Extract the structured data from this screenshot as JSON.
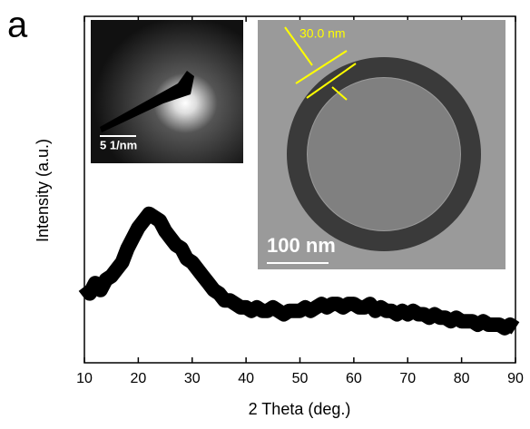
{
  "panel_label": "a",
  "chart_data": {
    "type": "line",
    "xlabel": "2 Theta (deg.)",
    "ylabel": "Intensity (a.u.)",
    "xlim": [
      10,
      90
    ],
    "xticks": [
      10,
      20,
      30,
      40,
      50,
      60,
      70,
      80,
      90
    ],
    "ylim": [
      0,
      100
    ],
    "x": [
      10,
      11,
      12,
      13,
      14,
      15,
      16,
      17,
      18,
      19,
      20,
      21,
      22,
      23,
      24,
      25,
      26,
      27,
      28,
      29,
      30,
      31,
      32,
      33,
      34,
      35,
      36,
      37,
      38,
      39,
      40,
      41,
      42,
      43,
      44,
      45,
      46,
      47,
      48,
      49,
      50,
      51,
      52,
      53,
      54,
      55,
      56,
      57,
      58,
      59,
      60,
      61,
      62,
      63,
      64,
      65,
      66,
      67,
      68,
      69,
      70,
      71,
      72,
      73,
      74,
      75,
      76,
      77,
      78,
      79,
      80,
      81,
      82,
      83,
      84,
      85,
      86,
      87,
      88,
      89,
      90
    ],
    "values": [
      22,
      20,
      23,
      21,
      24,
      25,
      27,
      29,
      33,
      36,
      39,
      41,
      43,
      42,
      41,
      38,
      36,
      34,
      33,
      30,
      29,
      27,
      25,
      23,
      21,
      20,
      18,
      18,
      17,
      16,
      16,
      15,
      16,
      15,
      15,
      16,
      15,
      14,
      15,
      15,
      15,
      16,
      15,
      16,
      17,
      16,
      17,
      17,
      16,
      17,
      17,
      16,
      16,
      17,
      15,
      16,
      15,
      15,
      14,
      15,
      14,
      15,
      14,
      14,
      13,
      14,
      13,
      13,
      12,
      13,
      12,
      12,
      12,
      11,
      12,
      11,
      11,
      11,
      10,
      11,
      10
    ],
    "color": "#000000"
  },
  "insets": [
    {
      "scale_label": "5 1/nm"
    },
    {
      "scale_label": "100 nm",
      "annotation": "30.0 nm"
    }
  ]
}
